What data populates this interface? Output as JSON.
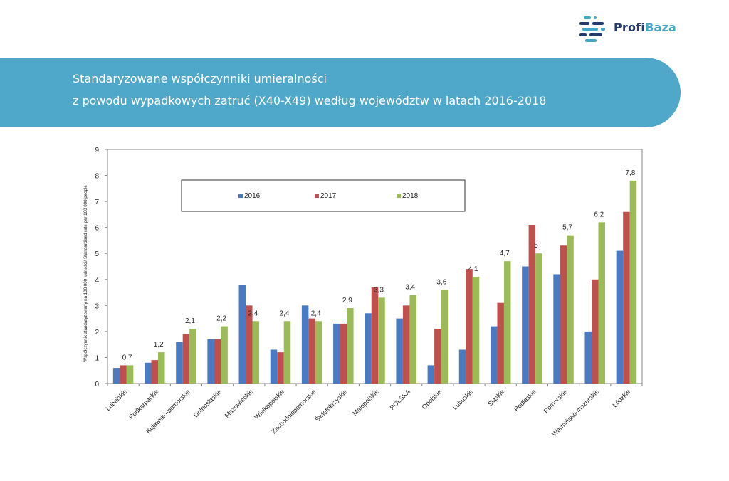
{
  "brand": {
    "name_part1": "Profi",
    "name_part2": "Baza",
    "colors": {
      "dark": "#243b6b",
      "accent": "#45a7c8"
    }
  },
  "banner": {
    "title_line1": "Standaryzowane współczynniki umieralności",
    "title_line2": "z powodu wypadkowych zatruć (X40-X49) według województw w latach 2016-2018",
    "color": "#4fa8c9"
  },
  "chart_data": {
    "type": "bar",
    "title": "Standaryzowane współczynniki umieralności z powodu wypadkowych zatruć (X40-X49) według województw w latach 2016-2018",
    "ylabel": "Współczynnik standaryzowany na 100 000 ludności/ Standardised rate per 100 000 people",
    "xlabel": "",
    "ylim": [
      0,
      9
    ],
    "yticks": [
      "0",
      "1",
      "2",
      "3",
      "4",
      "5",
      "6",
      "7",
      "8",
      "9"
    ],
    "grid": false,
    "legend_position": "top-left",
    "categories": [
      "Lubelskie",
      "Podkarpackie",
      "Kujawsko-pomorskie",
      "Dolnośląskie",
      "Mazowieckie",
      "Wielkopolskie",
      "Zachodniopomorskie",
      "Świętokrzyskie",
      "Małopolskie",
      "POLSKA",
      "Opolskie",
      "Lubuskie",
      "Śląskie",
      "Podlaskie",
      "Pomorskie",
      "Warmińsko-mazurskie",
      "Łódzkie"
    ],
    "series": [
      {
        "name": "2016",
        "color": "#4a7ac2",
        "values": [
          0.6,
          0.8,
          1.6,
          1.7,
          3.8,
          1.3,
          3.0,
          2.3,
          2.7,
          2.5,
          0.7,
          1.3,
          2.2,
          4.5,
          4.2,
          2.0,
          5.1
        ]
      },
      {
        "name": "2017",
        "color": "#c0504d",
        "values": [
          0.7,
          0.9,
          1.9,
          1.7,
          3.0,
          1.2,
          2.5,
          2.3,
          3.7,
          3.0,
          2.1,
          4.4,
          3.1,
          6.1,
          5.3,
          4.0,
          6.6
        ]
      },
      {
        "name": "2018",
        "color": "#9bbb59",
        "values": [
          0.7,
          1.2,
          2.1,
          2.2,
          2.4,
          2.4,
          2.4,
          2.9,
          3.3,
          3.4,
          3.6,
          4.1,
          4.7,
          5.0,
          5.7,
          6.2,
          7.8
        ]
      }
    ],
    "data_labels_2018": [
      "0,7",
      "1,2",
      "2,1",
      "2,2",
      "2,4",
      "2,4",
      "2,4",
      "2,9",
      "3,3",
      "3,4",
      "3,6",
      "4,1",
      "4,7",
      "5",
      "5,7",
      "6,2",
      "7,8"
    ]
  }
}
